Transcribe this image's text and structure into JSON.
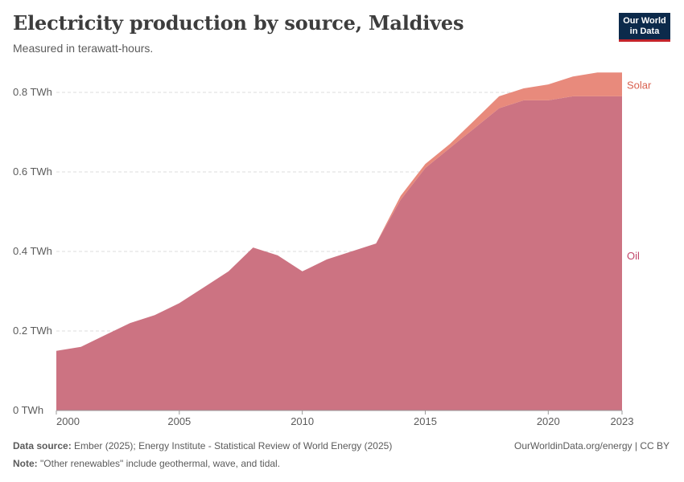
{
  "header": {
    "title": "Electricity production by source, Maldives",
    "subtitle": "Measured in terawatt-hours.",
    "logo_line1": "Our World",
    "logo_line2": "in Data"
  },
  "footer": {
    "source_label": "Data source:",
    "source_text": "Ember (2025); Energy Institute - Statistical Review of World Energy (2025)",
    "note_label": "Note:",
    "note_text": "\"Other renewables\" include geothermal, wave, and tidal.",
    "credit": "OurWorldinData.org/energy | CC BY"
  },
  "colors": {
    "oil": "#cc7382",
    "solar": "#e88a7c",
    "oil_label": "#c2476a",
    "solar_label": "#d9604f",
    "grid": "#dddddd",
    "axis_text": "#5b5b5b"
  },
  "chart_data": {
    "type": "area",
    "stacked": true,
    "unit": "TWh",
    "x": [
      2000,
      2001,
      2002,
      2003,
      2004,
      2005,
      2006,
      2007,
      2008,
      2009,
      2010,
      2011,
      2012,
      2013,
      2014,
      2015,
      2016,
      2017,
      2018,
      2019,
      2020,
      2021,
      2022,
      2023
    ],
    "series": [
      {
        "name": "Oil",
        "values": [
          0.15,
          0.16,
          0.19,
          0.22,
          0.24,
          0.27,
          0.31,
          0.35,
          0.41,
          0.39,
          0.35,
          0.38,
          0.4,
          0.42,
          0.53,
          0.61,
          0.66,
          0.71,
          0.76,
          0.78,
          0.78,
          0.79,
          0.79,
          0.79
        ]
      },
      {
        "name": "Solar",
        "values": [
          0,
          0,
          0,
          0,
          0,
          0,
          0,
          0,
          0,
          0,
          0,
          0,
          0,
          0,
          0.01,
          0.01,
          0.01,
          0.02,
          0.03,
          0.03,
          0.04,
          0.05,
          0.06,
          0.06
        ]
      }
    ],
    "ylim": [
      0,
      0.8
    ],
    "yticks": [
      {
        "value": 0,
        "label": "0 TWh"
      },
      {
        "value": 0.2,
        "label": "0.2 TWh"
      },
      {
        "value": 0.4,
        "label": "0.4 TWh"
      },
      {
        "value": 0.6,
        "label": "0.6 TWh"
      },
      {
        "value": 0.8,
        "label": "0.8 TWh"
      }
    ],
    "xticks": [
      {
        "value": 2000,
        "label": "2000"
      },
      {
        "value": 2005,
        "label": "2005"
      },
      {
        "value": 2010,
        "label": "2010"
      },
      {
        "value": 2015,
        "label": "2015"
      },
      {
        "value": 2020,
        "label": "2020"
      },
      {
        "value": 2023,
        "label": "2023"
      }
    ],
    "grid": true,
    "legend": "right-inline"
  }
}
